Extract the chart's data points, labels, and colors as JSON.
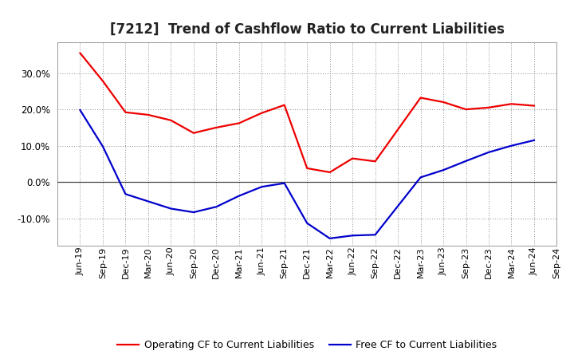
{
  "title": "[7212]  Trend of Cashflow Ratio to Current Liabilities",
  "x_labels": [
    "Jun-19",
    "Sep-19",
    "Dec-19",
    "Mar-20",
    "Jun-20",
    "Sep-20",
    "Dec-20",
    "Mar-21",
    "Jun-21",
    "Sep-21",
    "Dec-21",
    "Mar-22",
    "Jun-22",
    "Sep-22",
    "Dec-22",
    "Mar-23",
    "Jun-23",
    "Sep-23",
    "Dec-23",
    "Mar-24",
    "Jun-24",
    "Sep-24"
  ],
  "operating_cf": [
    0.355,
    0.278,
    0.192,
    0.185,
    0.17,
    0.135,
    0.15,
    0.162,
    0.19,
    0.212,
    0.038,
    0.027,
    0.065,
    0.057,
    null,
    0.232,
    0.22,
    0.2,
    0.205,
    0.215,
    0.21,
    null
  ],
  "free_cf": [
    0.198,
    0.098,
    -0.033,
    -0.053,
    -0.073,
    -0.083,
    -0.068,
    -0.038,
    -0.013,
    -0.003,
    -0.113,
    -0.155,
    -0.147,
    -0.145,
    null,
    0.013,
    0.033,
    0.058,
    0.082,
    0.1,
    0.115,
    null
  ],
  "ylim": [
    -0.175,
    0.385
  ],
  "yticks": [
    -0.1,
    0.0,
    0.1,
    0.2,
    0.3
  ],
  "operating_color": "#EE0000",
  "free_color": "#0000CC",
  "background_color": "#FFFFFF",
  "grid_color": "#888888",
  "zero_line_color": "#444444",
  "legend_operating": "Operating CF to Current Liabilities",
  "legend_free": "Free CF to Current Liabilities",
  "title_fontsize": 12,
  "tick_fontsize": 8,
  "legend_fontsize": 9
}
